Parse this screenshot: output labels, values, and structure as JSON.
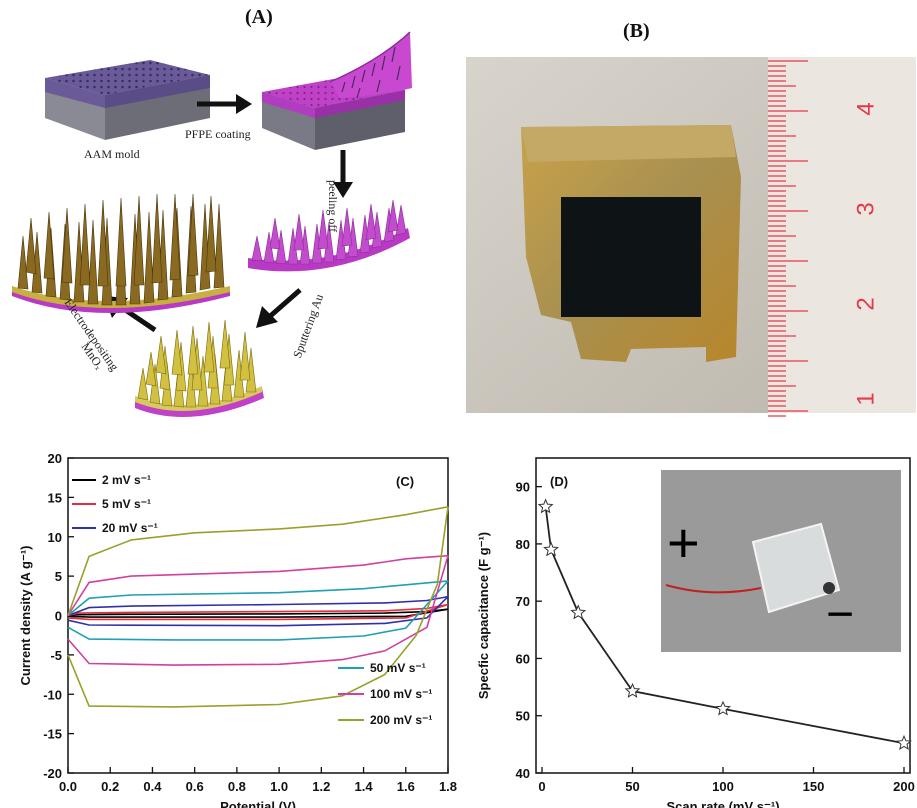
{
  "panels": {
    "a_label": "(A)",
    "b_label": "(B)",
    "c_label": "(C)",
    "d_label": "(D)"
  },
  "schematic": {
    "aam_mold": "AAM mold",
    "pfpe_coating": "PFPE coating",
    "peeling_off": "peeling off",
    "sputtering_au": "Sputtering Au",
    "electrodepositing": "Electrodepositing",
    "mnox": "MnOₓ"
  },
  "photo": {
    "ruler_numbers": [
      "4",
      "3",
      "2",
      "1"
    ]
  },
  "chart_data": [
    {
      "type": "line",
      "panel": "(C)",
      "xlabel": "Potential (V)",
      "ylabel": "Current density (A g⁻¹)",
      "xlim": [
        0.0,
        1.8
      ],
      "ylim": [
        -20,
        20
      ],
      "xticks": [
        "0.0",
        "0.2",
        "0.4",
        "0.6",
        "0.8",
        "1.0",
        "1.2",
        "1.4",
        "1.6",
        "1.8"
      ],
      "yticks": [
        "20",
        "15",
        "10",
        "5",
        "0",
        "-5",
        "-10",
        "-15",
        "-20"
      ],
      "series": [
        {
          "name": "2 mV s⁻¹",
          "color": "#000000",
          "upper": [
            [
              0,
              0
            ],
            [
              0.05,
              0.1
            ],
            [
              0.3,
              0.15
            ],
            [
              1.0,
              0.2
            ],
            [
              1.5,
              0.3
            ],
            [
              1.7,
              0.5
            ],
            [
              1.8,
              0.8
            ]
          ],
          "lower": [
            [
              0,
              -0.1
            ],
            [
              0.1,
              -0.2
            ],
            [
              1.0,
              -0.2
            ],
            [
              1.6,
              -0.1
            ],
            [
              1.8,
              0.8
            ]
          ]
        },
        {
          "name": "5 mV s⁻¹",
          "color": "#e03040",
          "upper": [
            [
              0,
              0
            ],
            [
              0.05,
              0.3
            ],
            [
              0.3,
              0.4
            ],
            [
              1.0,
              0.5
            ],
            [
              1.5,
              0.6
            ],
            [
              1.7,
              0.9
            ],
            [
              1.8,
              1.4
            ]
          ],
          "lower": [
            [
              0,
              -0.3
            ],
            [
              0.1,
              -0.5
            ],
            [
              1.0,
              -0.5
            ],
            [
              1.6,
              -0.3
            ],
            [
              1.8,
              1.4
            ]
          ]
        },
        {
          "name": "20 mV s⁻¹",
          "color": "#3030a8",
          "upper": [
            [
              0,
              0
            ],
            [
              0.1,
              1.0
            ],
            [
              0.3,
              1.2
            ],
            [
              1.0,
              1.4
            ],
            [
              1.5,
              1.6
            ],
            [
              1.7,
              1.9
            ],
            [
              1.8,
              2.4
            ]
          ],
          "lower": [
            [
              0,
              -0.6
            ],
            [
              0.1,
              -1.2
            ],
            [
              1.0,
              -1.3
            ],
            [
              1.5,
              -1.0
            ],
            [
              1.7,
              -0.3
            ],
            [
              1.8,
              2.4
            ]
          ]
        },
        {
          "name": "50 mV s⁻¹",
          "color": "#20a0b0",
          "upper": [
            [
              0,
              0
            ],
            [
              0.1,
              2.2
            ],
            [
              0.3,
              2.6
            ],
            [
              1.0,
              2.9
            ],
            [
              1.4,
              3.4
            ],
            [
              1.6,
              3.9
            ],
            [
              1.8,
              4.4
            ]
          ],
          "lower": [
            [
              0,
              -1.5
            ],
            [
              0.1,
              -3.0
            ],
            [
              0.5,
              -3.1
            ],
            [
              1.0,
              -3.1
            ],
            [
              1.4,
              -2.6
            ],
            [
              1.6,
              -1.6
            ],
            [
              1.8,
              4.4
            ]
          ]
        },
        {
          "name": "100 mV s⁻¹",
          "color": "#d040a0",
          "upper": [
            [
              0,
              0
            ],
            [
              0.1,
              4.2
            ],
            [
              0.3,
              5.0
            ],
            [
              1.0,
              5.6
            ],
            [
              1.4,
              6.4
            ],
            [
              1.6,
              7.2
            ],
            [
              1.8,
              7.6
            ]
          ],
          "lower": [
            [
              0,
              -3.0
            ],
            [
              0.1,
              -6.1
            ],
            [
              0.5,
              -6.3
            ],
            [
              1.0,
              -6.2
            ],
            [
              1.3,
              -5.6
            ],
            [
              1.5,
              -4.5
            ],
            [
              1.7,
              -1.5
            ],
            [
              1.8,
              7.6
            ]
          ]
        },
        {
          "name": "200 mV s⁻¹",
          "color": "#9aa02a",
          "upper": [
            [
              0,
              0
            ],
            [
              0.1,
              7.5
            ],
            [
              0.3,
              9.6
            ],
            [
              0.6,
              10.5
            ],
            [
              1.0,
              11.0
            ],
            [
              1.3,
              11.6
            ],
            [
              1.6,
              12.8
            ],
            [
              1.8,
              13.8
            ]
          ],
          "lower": [
            [
              0,
              -5.0
            ],
            [
              0.1,
              -11.5
            ],
            [
              0.5,
              -11.6
            ],
            [
              1.0,
              -11.3
            ],
            [
              1.3,
              -10.2
            ],
            [
              1.5,
              -7.5
            ],
            [
              1.65,
              -2.5
            ],
            [
              1.75,
              4.0
            ],
            [
              1.8,
              13.8
            ]
          ]
        }
      ]
    },
    {
      "type": "line",
      "panel": "(D)",
      "xlabel": "Scan rate (mV s⁻¹)",
      "ylabel": "Specfic capacitance (F g⁻¹)",
      "xlim": [
        0,
        200
      ],
      "ylim": [
        40,
        90
      ],
      "xticks": [
        "0",
        "50",
        "100",
        "150",
        "200"
      ],
      "yticks": [
        "90",
        "80",
        "70",
        "60",
        "50",
        "40"
      ],
      "x": [
        2,
        5,
        20,
        50,
        100,
        200
      ],
      "y": [
        86.5,
        79,
        68,
        54.3,
        51.2,
        45.2
      ],
      "inset_plus": "+",
      "inset_minus": "−",
      "colors": {
        "line": "#222222",
        "marker_fill": "#ffffff"
      }
    }
  ]
}
